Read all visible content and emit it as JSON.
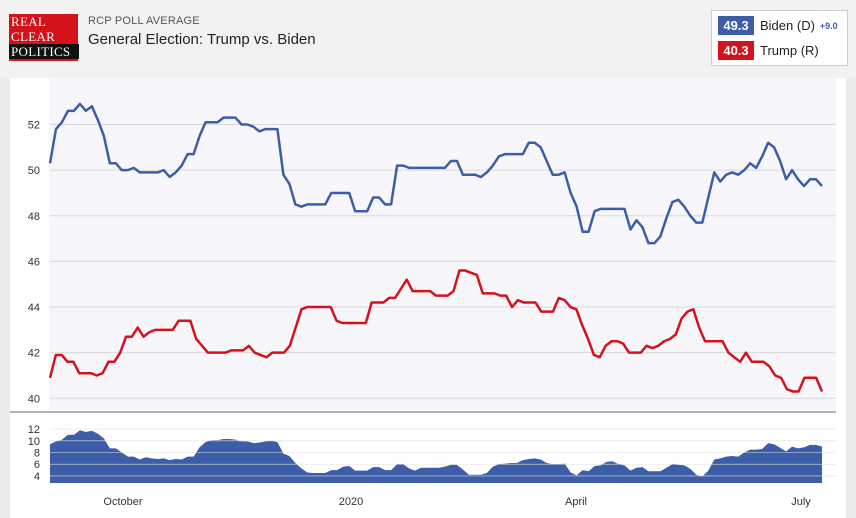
{
  "header": {
    "logo_lines": [
      "REAL",
      "CLEAR",
      "POLITICS"
    ],
    "subtitle": "RCP POLL AVERAGE",
    "title": "General Election: Trump vs. Biden"
  },
  "legend": [
    {
      "value": "49.3",
      "name": "Biden (D)",
      "spread": "+9.0",
      "color": "#3c5ea8"
    },
    {
      "value": "40.3",
      "name": "Trump (R)",
      "spread": "",
      "color": "#d3121c"
    }
  ],
  "chart_data": {
    "type": "line",
    "x_labels": [
      "October",
      "2020",
      "April",
      "July"
    ],
    "y_ticks": [
      40,
      42,
      44,
      46,
      48,
      50,
      52
    ],
    "ylim": [
      39.4,
      53.6
    ],
    "spread_ticks": [
      4,
      6,
      8,
      10,
      12
    ],
    "spread_ylim": [
      2.8,
      13.2
    ],
    "series": [
      {
        "name": "Biden (D)",
        "color": "#3c5ea8",
        "values": [
          50.3,
          51.8,
          52.1,
          52.6,
          52.6,
          52.9,
          52.6,
          52.8,
          52.2,
          51.5,
          50.3,
          50.3,
          50.0,
          50.0,
          50.1,
          49.9,
          49.9,
          49.9,
          49.9,
          50.0,
          49.7,
          49.9,
          50.2,
          50.7,
          50.7,
          51.5,
          52.1,
          52.1,
          52.1,
          52.3,
          52.3,
          52.3,
          52.0,
          52.0,
          51.9,
          51.7,
          51.8,
          51.8,
          51.8,
          49.8,
          49.4,
          48.5,
          48.4,
          48.5,
          48.5,
          48.5,
          48.5,
          49.0,
          49.0,
          49.0,
          49.0,
          48.2,
          48.2,
          48.2,
          48.8,
          48.8,
          48.5,
          48.5,
          50.2,
          50.2,
          50.1,
          50.1,
          50.1,
          50.1,
          50.1,
          50.1,
          50.1,
          50.4,
          50.4,
          49.8,
          49.8,
          49.8,
          49.7,
          49.9,
          50.2,
          50.6,
          50.7,
          50.7,
          50.7,
          50.7,
          51.2,
          51.2,
          51.0,
          50.4,
          49.8,
          49.8,
          49.9,
          49.0,
          48.4,
          47.3,
          47.3,
          48.2,
          48.3,
          48.3,
          48.3,
          48.3,
          48.3,
          47.4,
          47.8,
          47.5,
          46.8,
          46.8,
          47.1,
          47.9,
          48.6,
          48.7,
          48.4,
          48.0,
          47.7,
          47.7,
          48.8,
          49.9,
          49.5,
          49.8,
          49.9,
          49.8,
          50.0,
          50.3,
          50.1,
          50.6,
          51.2,
          51.0,
          50.4,
          49.6,
          50.0,
          49.6,
          49.3,
          49.6,
          49.6,
          49.3
        ]
      },
      {
        "name": "Trump (R)",
        "color": "#d3121c",
        "values": [
          40.9,
          41.9,
          41.9,
          41.6,
          41.6,
          41.1,
          41.1,
          41.1,
          41.0,
          41.1,
          41.6,
          41.6,
          42.0,
          42.7,
          42.7,
          43.1,
          42.7,
          42.9,
          43.0,
          43.0,
          43.0,
          43.0,
          43.4,
          43.4,
          43.4,
          42.6,
          42.3,
          42.0,
          42.0,
          42.0,
          42.0,
          42.1,
          42.1,
          42.1,
          42.3,
          42.0,
          41.9,
          41.8,
          42.0,
          42.0,
          42.0,
          42.3,
          43.1,
          43.9,
          44.0,
          44.0,
          44.0,
          44.0,
          44.0,
          43.4,
          43.3,
          43.3,
          43.3,
          43.3,
          43.3,
          44.2,
          44.2,
          44.2,
          44.4,
          44.4,
          44.8,
          45.2,
          44.7,
          44.7,
          44.7,
          44.7,
          44.5,
          44.5,
          44.5,
          44.7,
          45.6,
          45.6,
          45.5,
          45.4,
          44.6,
          44.6,
          44.6,
          44.5,
          44.5,
          44.0,
          44.3,
          44.2,
          44.2,
          44.2,
          43.8,
          43.8,
          43.8,
          44.4,
          44.3,
          44.0,
          43.9,
          43.2,
          42.6,
          41.9,
          41.8,
          42.3,
          42.5,
          42.5,
          42.4,
          42.0,
          42.0,
          42.0,
          42.3,
          42.2,
          42.3,
          42.5,
          42.6,
          42.8,
          43.5,
          43.8,
          43.9,
          43.1,
          42.5,
          42.5,
          42.5,
          42.5,
          42.0,
          41.8,
          41.6,
          42.0,
          41.6,
          41.6,
          41.6,
          41.4,
          41.0,
          40.9,
          40.4,
          40.3,
          40.3,
          40.9,
          40.9,
          40.9,
          40.3
        ]
      }
    ],
    "spread": [
      9.4,
      9.9,
      10.2,
      11.0,
      11.0,
      11.8,
      11.5,
      11.7,
      11.2,
      10.4,
      8.7,
      8.7,
      8.0,
      7.3,
      7.3,
      6.8,
      7.2,
      7.0,
      6.9,
      7.0,
      6.7,
      6.9,
      6.8,
      7.3,
      7.3,
      8.9,
      9.8,
      10.1,
      10.1,
      10.3,
      10.3,
      10.2,
      9.9,
      9.9,
      9.6,
      9.7,
      9.9,
      10.0,
      9.8,
      7.8,
      7.4,
      6.2,
      5.3,
      4.6,
      4.5,
      4.5,
      4.5,
      5.0,
      5.0,
      5.6,
      5.7,
      4.9,
      4.9,
      4.9,
      5.5,
      5.5,
      5.0,
      5.0,
      6.0,
      6.0,
      5.3,
      4.9,
      5.4,
      5.4,
      5.4,
      5.4,
      5.6,
      5.9,
      5.9,
      5.1,
      4.2,
      4.2,
      4.2,
      4.5,
      5.6,
      6.0,
      6.1,
      6.2,
      6.2,
      6.7,
      6.9,
      7.0,
      6.8,
      6.2,
      6.0,
      6.0,
      6.1,
      4.6,
      4.1,
      5.0,
      4.8,
      5.7,
      5.8,
      6.4,
      6.5,
      6.0,
      5.8,
      4.9,
      5.4,
      5.5,
      4.8,
      4.8,
      4.8,
      5.4,
      6.0,
      5.9,
      5.8,
      5.2,
      4.2,
      3.9,
      4.9,
      6.8,
      7.0,
      7.3,
      7.4,
      7.3,
      8.0,
      8.5,
      8.5,
      8.6,
      9.6,
      9.4,
      8.8,
      8.2,
      9.0,
      8.7,
      8.9,
      9.3,
      9.3,
      9.0
    ]
  }
}
